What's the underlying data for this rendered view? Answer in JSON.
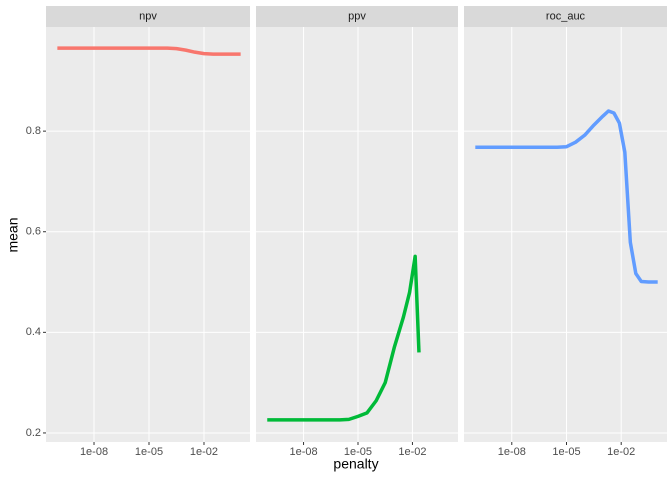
{
  "chart_data": {
    "type": "line",
    "xlabel": "penalty",
    "ylabel": "mean",
    "xlog": true,
    "xlim": [
      2.4e-11,
      3.24
    ],
    "xticks": [
      {
        "value": 1e-08,
        "label": "1e-08"
      },
      {
        "value": 1e-05,
        "label": "1e-05"
      },
      {
        "value": 0.01,
        "label": "1e-02"
      }
    ],
    "ylim": [
      0.182,
      1.007
    ],
    "yticks": [
      0.2,
      0.4,
      0.6,
      0.8
    ],
    "grid": true,
    "facets": [
      {
        "title": "npv",
        "color": "#F8766D",
        "x": [
          1e-10,
          3.16e-10,
          1e-09,
          3.16e-09,
          1e-08,
          3.16e-08,
          1e-07,
          3.16e-07,
          1e-06,
          3.16e-06,
          1e-05,
          3.16e-05,
          0.0001,
          0.000316,
          0.001,
          0.00316,
          0.01,
          0.0316,
          0.1,
          0.316,
          1
        ],
        "values": [
          0.965,
          0.965,
          0.965,
          0.965,
          0.965,
          0.965,
          0.965,
          0.965,
          0.965,
          0.965,
          0.965,
          0.965,
          0.965,
          0.964,
          0.961,
          0.957,
          0.954,
          0.953,
          0.953,
          0.953,
          0.953
        ]
      },
      {
        "title": "ppv",
        "color": "#00BA38",
        "x": [
          1e-10,
          1e-09,
          1e-08,
          1e-07,
          1e-06,
          3.16e-06,
          1e-05,
          3.16e-05,
          0.0001,
          0.000316,
          0.001,
          0.00316,
          0.00692,
          0.0141,
          0.0229
        ],
        "values": [
          0.226,
          0.226,
          0.226,
          0.226,
          0.226,
          0.227,
          0.233,
          0.24,
          0.264,
          0.3,
          0.37,
          0.43,
          0.479,
          0.551,
          0.36
        ]
      },
      {
        "title": "roc_auc",
        "color": "#619CFF",
        "x": [
          1e-10,
          1e-09,
          1e-08,
          1e-07,
          1e-06,
          3.16e-06,
          1e-05,
          3.16e-05,
          0.0001,
          0.000316,
          0.001,
          0.002,
          0.00398,
          0.00794,
          0.0158,
          0.0316,
          0.0631,
          0.126,
          0.316,
          1
        ],
        "values": [
          0.768,
          0.768,
          0.768,
          0.768,
          0.768,
          0.768,
          0.769,
          0.778,
          0.792,
          0.812,
          0.83,
          0.84,
          0.836,
          0.816,
          0.758,
          0.579,
          0.517,
          0.501,
          0.5,
          0.5
        ]
      }
    ]
  }
}
